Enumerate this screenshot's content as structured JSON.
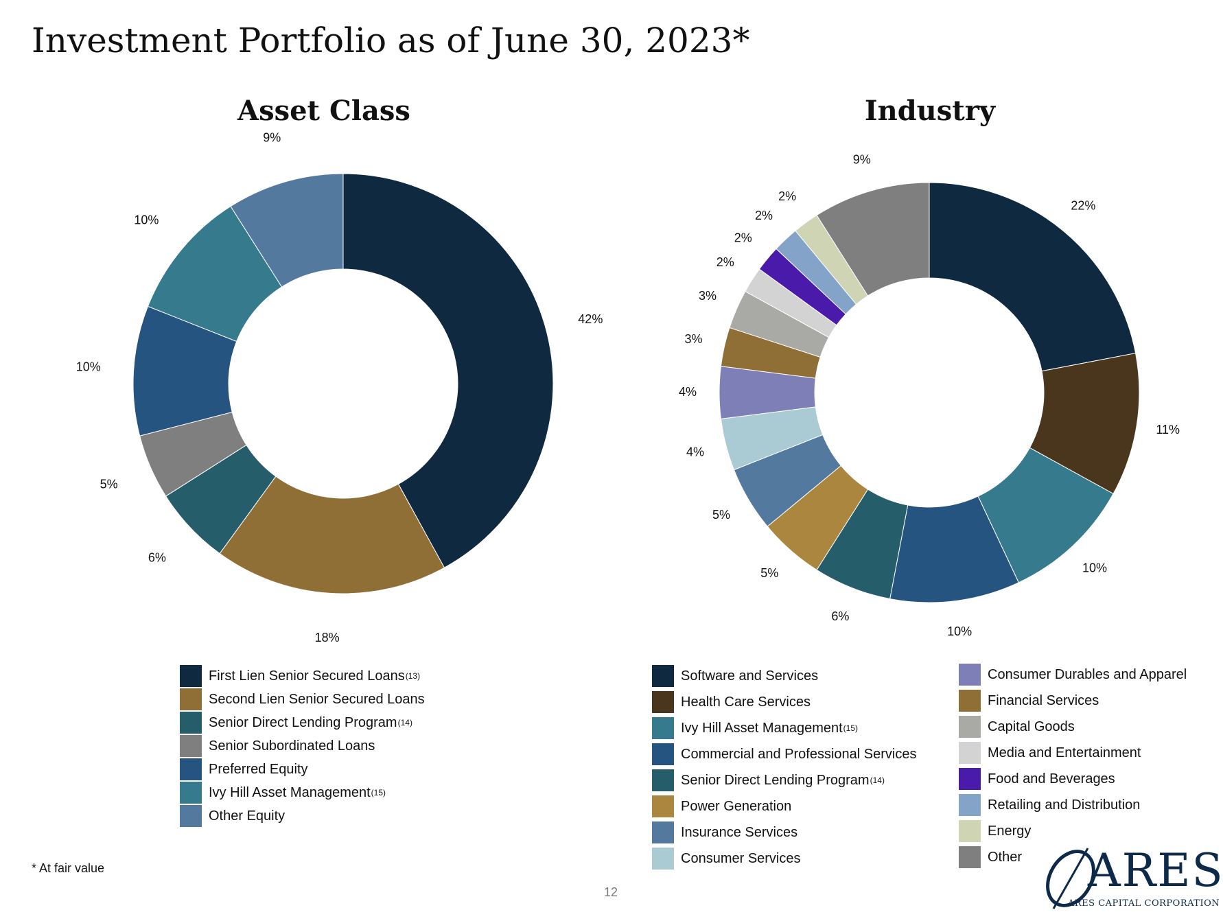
{
  "title": "Investment Portfolio as of June 30, 2023*",
  "footnote": "* At fair value",
  "page_number": "12",
  "logo": {
    "name": "ARES",
    "subtitle": "ARES CAPITAL CORPORATION"
  },
  "chart_data": [
    {
      "type": "pie",
      "donut": true,
      "title": "Asset Class",
      "legend_position": "bottom",
      "slices": [
        {
          "label": "First Lien Senior Secured Loans",
          "sup": "(13)",
          "value": 42,
          "value_label": "42%",
          "color": "#0f2940"
        },
        {
          "label": "Second Lien Senior Secured Loans",
          "sup": "",
          "value": 18,
          "value_label": "18%",
          "color": "#8f6f36"
        },
        {
          "label": "Senior Direct Lending Program",
          "sup": "(14)",
          "value": 6,
          "value_label": "6%",
          "color": "#265d6b"
        },
        {
          "label": "Senior Subordinated Loans",
          "sup": "",
          "value": 5,
          "value_label": "5%",
          "color": "#7f7f7f"
        },
        {
          "label": "Preferred Equity",
          "sup": "",
          "value": 10,
          "value_label": "10%",
          "color": "#24547f"
        },
        {
          "label": "Ivy Hill Asset Management",
          "sup": "(15)",
          "value": 10,
          "value_label": "10%",
          "color": "#367a8e"
        },
        {
          "label": "Other Equity",
          "sup": "",
          "value": 9,
          "value_label": "9%",
          "color": "#537a9e"
        }
      ]
    },
    {
      "type": "pie",
      "donut": true,
      "title": "Industry",
      "legend_position": "bottom",
      "slices": [
        {
          "label": "Software and Services",
          "sup": "",
          "value": 22,
          "value_label": "22%",
          "color": "#0f2940"
        },
        {
          "label": "Health Care Services",
          "sup": "",
          "value": 11,
          "value_label": "11%",
          "color": "#4a351d"
        },
        {
          "label": "Ivy Hill Asset Management",
          "sup": "(15)",
          "value": 10,
          "value_label": "10%",
          "color": "#367a8e"
        },
        {
          "label": "Commercial and Professional Services",
          "sup": "",
          "value": 10,
          "value_label": "10%",
          "color": "#24547f"
        },
        {
          "label": "Senior Direct Lending Program",
          "sup": "(14)",
          "value": 6,
          "value_label": "6%",
          "color": "#265d6b"
        },
        {
          "label": "Power Generation",
          "sup": "",
          "value": 5,
          "value_label": "5%",
          "color": "#ab863f"
        },
        {
          "label": "Insurance Services",
          "sup": "",
          "value": 5,
          "value_label": "5%",
          "color": "#537a9e"
        },
        {
          "label": "Consumer Services",
          "sup": "",
          "value": 4,
          "value_label": "4%",
          "color": "#aacbd4"
        },
        {
          "label": "Consumer Durables and Apparel",
          "sup": "",
          "value": 4,
          "value_label": "4%",
          "color": "#7f7fb8"
        },
        {
          "label": "Financial Services",
          "sup": "",
          "value": 3,
          "value_label": "3%",
          "color": "#8f6f36"
        },
        {
          "label": "Capital Goods",
          "sup": "",
          "value": 3,
          "value_label": "3%",
          "color": "#a9a9a5"
        },
        {
          "label": "Media and Entertainment",
          "sup": "",
          "value": 2,
          "value_label": "2%",
          "color": "#d3d3d3"
        },
        {
          "label": "Food and Beverages",
          "sup": "",
          "value": 2,
          "value_label": "2%",
          "color": "#4a1aaa"
        },
        {
          "label": "Retailing and Distribution",
          "sup": "",
          "value": 2,
          "value_label": "2%",
          "color": "#84a3c8"
        },
        {
          "label": "Energy",
          "sup": "",
          "value": 2,
          "value_label": "2%",
          "color": "#cfd4b4"
        },
        {
          "label": "Other",
          "sup": "",
          "value": 9,
          "value_label": "9%",
          "color": "#7f7f7f"
        }
      ]
    }
  ]
}
